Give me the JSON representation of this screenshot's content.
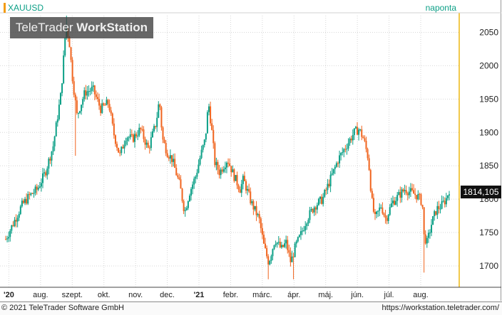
{
  "header": {
    "symbol": "XAUUSD",
    "period": "naponta"
  },
  "watermark": {
    "brand_light": "TeleTrader ",
    "brand_bold": "WorkStation"
  },
  "footer": {
    "copyright": "© 2021 TeleTrader Software GmbH",
    "url": "https://workstation.teletrader.com/"
  },
  "colors": {
    "up": "#0b9f86",
    "down": "#f0641e",
    "grid": "#d7d7d7",
    "axis_highlight": "#f2c94c"
  },
  "chart_data": {
    "type": "candlestick",
    "title": "",
    "symbol": "XAUUSD",
    "interval": "naponta",
    "y_ticks": [
      1700,
      1750,
      1800,
      1850,
      1900,
      1950,
      2000,
      2050
    ],
    "ylim": [
      1668,
      2075
    ],
    "x_ticks": [
      "'20",
      "aug.",
      "szept.",
      "okt.",
      "nov.",
      "dec.",
      "'21",
      "febr.",
      "márc.",
      "ápr.",
      "máj.",
      "jún.",
      "júl.",
      "aug."
    ],
    "last_price": "1814,105",
    "grid": true,
    "price_path": [
      {
        "t": 0.0,
        "p": 1740
      },
      {
        "t": 0.25,
        "p": 1765
      },
      {
        "t": 0.5,
        "p": 1790
      },
      {
        "t": 0.75,
        "p": 1805
      },
      {
        "t": 1.0,
        "p": 1815
      },
      {
        "t": 1.25,
        "p": 1840
      },
      {
        "t": 1.5,
        "p": 1880
      },
      {
        "t": 1.75,
        "p": 1960
      },
      {
        "t": 1.9,
        "p": 2060
      },
      {
        "t": 2.0,
        "p": 2040
      },
      {
        "t": 2.1,
        "p": 1985
      },
      {
        "t": 2.25,
        "p": 1925
      },
      {
        "t": 2.5,
        "p": 1960
      },
      {
        "t": 2.75,
        "p": 1965
      },
      {
        "t": 3.0,
        "p": 1935
      },
      {
        "t": 3.25,
        "p": 1945
      },
      {
        "t": 3.4,
        "p": 1900
      },
      {
        "t": 3.6,
        "p": 1865
      },
      {
        "t": 3.8,
        "p": 1895
      },
      {
        "t": 4.0,
        "p": 1890
      },
      {
        "t": 4.25,
        "p": 1905
      },
      {
        "t": 4.5,
        "p": 1875
      },
      {
        "t": 4.75,
        "p": 1915
      },
      {
        "t": 4.85,
        "p": 1950
      },
      {
        "t": 4.95,
        "p": 1890
      },
      {
        "t": 5.1,
        "p": 1870
      },
      {
        "t": 5.25,
        "p": 1860
      },
      {
        "t": 5.5,
        "p": 1820
      },
      {
        "t": 5.65,
        "p": 1780
      },
      {
        "t": 5.8,
        "p": 1810
      },
      {
        "t": 6.0,
        "p": 1835
      },
      {
        "t": 6.15,
        "p": 1865
      },
      {
        "t": 6.3,
        "p": 1890
      },
      {
        "t": 6.4,
        "p": 1945
      },
      {
        "t": 6.5,
        "p": 1905
      },
      {
        "t": 6.6,
        "p": 1855
      },
      {
        "t": 6.75,
        "p": 1840
      },
      {
        "t": 7.0,
        "p": 1860
      },
      {
        "t": 7.2,
        "p": 1835
      },
      {
        "t": 7.4,
        "p": 1815
      },
      {
        "t": 7.5,
        "p": 1830
      },
      {
        "t": 7.75,
        "p": 1795
      },
      {
        "t": 8.0,
        "p": 1770
      },
      {
        "t": 8.15,
        "p": 1730
      },
      {
        "t": 8.3,
        "p": 1705
      },
      {
        "t": 8.5,
        "p": 1740
      },
      {
        "t": 8.7,
        "p": 1725
      },
      {
        "t": 8.85,
        "p": 1735
      },
      {
        "t": 9.0,
        "p": 1705
      },
      {
        "t": 9.15,
        "p": 1730
      },
      {
        "t": 9.3,
        "p": 1745
      },
      {
        "t": 9.5,
        "p": 1770
      },
      {
        "t": 9.75,
        "p": 1790
      },
      {
        "t": 10.0,
        "p": 1800
      },
      {
        "t": 10.25,
        "p": 1830
      },
      {
        "t": 10.5,
        "p": 1860
      },
      {
        "t": 10.75,
        "p": 1880
      },
      {
        "t": 11.0,
        "p": 1900
      },
      {
        "t": 11.15,
        "p": 1905
      },
      {
        "t": 11.3,
        "p": 1890
      },
      {
        "t": 11.45,
        "p": 1860
      },
      {
        "t": 11.55,
        "p": 1800
      },
      {
        "t": 11.65,
        "p": 1770
      },
      {
        "t": 11.85,
        "p": 1790
      },
      {
        "t": 12.0,
        "p": 1770
      },
      {
        "t": 12.2,
        "p": 1795
      },
      {
        "t": 12.4,
        "p": 1805
      },
      {
        "t": 12.6,
        "p": 1815
      },
      {
        "t": 12.8,
        "p": 1810
      },
      {
        "t": 13.0,
        "p": 1805
      },
      {
        "t": 13.15,
        "p": 1795
      },
      {
        "t": 13.2,
        "p": 1745
      },
      {
        "t": 13.3,
        "p": 1735
      },
      {
        "t": 13.45,
        "p": 1765
      },
      {
        "t": 13.6,
        "p": 1785
      },
      {
        "t": 13.75,
        "p": 1790
      },
      {
        "t": 13.9,
        "p": 1800
      },
      {
        "t": 14.0,
        "p": 1814
      }
    ],
    "spikes": [
      {
        "t": 1.94,
        "high": 2075
      },
      {
        "t": 2.22,
        "low": 1865
      },
      {
        "t": 13.2,
        "low": 1690
      },
      {
        "t": 8.3,
        "low": 1680
      },
      {
        "t": 9.1,
        "low": 1680
      }
    ]
  }
}
